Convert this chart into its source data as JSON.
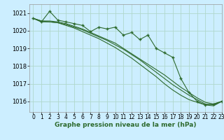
{
  "background_color": "#cceeff",
  "grid_color": "#b0d8cc",
  "line_color": "#2d6a2d",
  "xlabel": "Graphe pression niveau de la mer (hPa)",
  "xlabel_fontsize": 6.5,
  "xlim": [
    -0.5,
    23
  ],
  "ylim": [
    1015.4,
    1021.5
  ],
  "yticks": [
    1016,
    1017,
    1018,
    1019,
    1020,
    1021
  ],
  "xticks": [
    0,
    1,
    2,
    3,
    4,
    5,
    6,
    7,
    8,
    9,
    10,
    11,
    12,
    13,
    14,
    15,
    16,
    17,
    18,
    19,
    20,
    21,
    22,
    23
  ],
  "series_main": [
    1020.7,
    1020.5,
    1021.1,
    1020.6,
    1020.5,
    1020.4,
    1020.3,
    1019.95,
    1020.2,
    1020.1,
    1020.2,
    1019.75,
    1019.9,
    1019.5,
    1019.75,
    1019.0,
    1018.75,
    1018.5,
    1017.3,
    1016.5,
    1016.0,
    1015.8,
    1015.85,
    1016.0
  ],
  "series_smooth1": [
    1020.7,
    1020.55,
    1020.55,
    1020.5,
    1020.4,
    1020.25,
    1020.1,
    1019.9,
    1019.7,
    1019.5,
    1019.3,
    1019.0,
    1018.7,
    1018.4,
    1018.1,
    1017.8,
    1017.5,
    1017.15,
    1016.8,
    1016.5,
    1016.2,
    1015.95,
    1015.85,
    1016.0
  ],
  "series_smooth2": [
    1020.7,
    1020.55,
    1020.5,
    1020.45,
    1020.35,
    1020.2,
    1020.05,
    1019.85,
    1019.65,
    1019.45,
    1019.2,
    1018.95,
    1018.65,
    1018.35,
    1018.0,
    1017.65,
    1017.3,
    1016.95,
    1016.65,
    1016.35,
    1016.1,
    1015.85,
    1015.8,
    1016.0
  ],
  "series_smooth3": [
    1020.7,
    1020.5,
    1020.5,
    1020.45,
    1020.3,
    1020.15,
    1019.95,
    1019.75,
    1019.55,
    1019.3,
    1019.05,
    1018.75,
    1018.45,
    1018.1,
    1017.75,
    1017.4,
    1017.0,
    1016.65,
    1016.35,
    1016.1,
    1015.95,
    1015.8,
    1015.75,
    1016.0
  ],
  "tick_fontsize": 5.5,
  "ytick_fontsize": 6.0
}
